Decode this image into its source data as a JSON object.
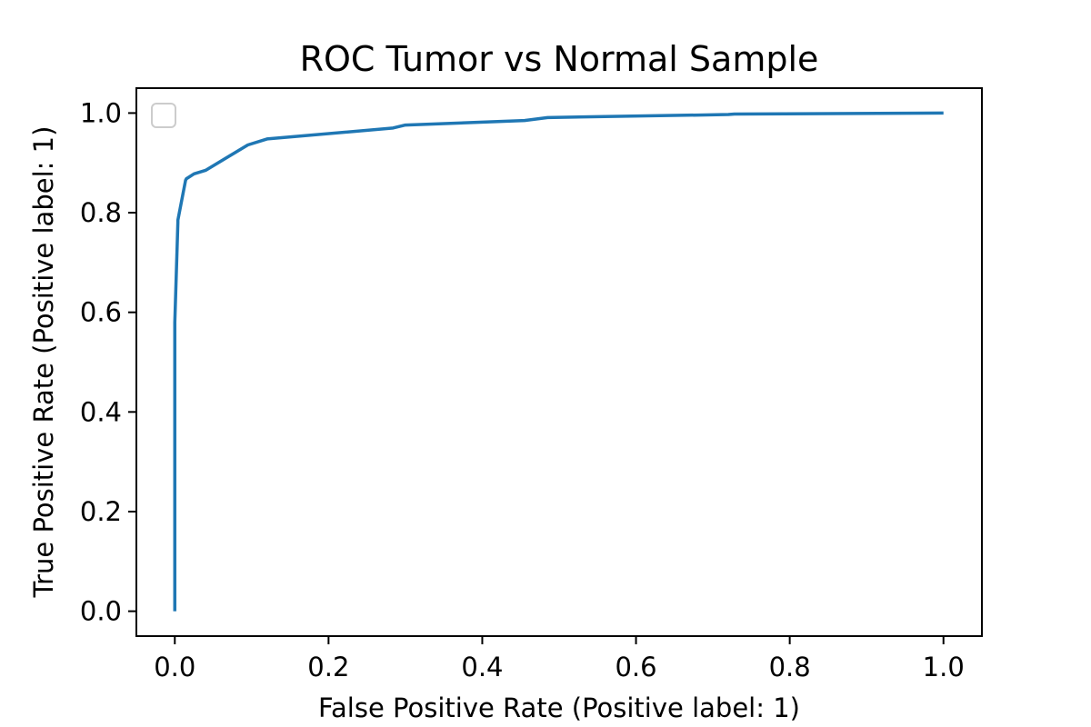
{
  "chart_data": {
    "type": "line",
    "title": "ROC Tumor vs Normal Sample",
    "xlabel": "False Positive Rate (Positive label: 1)",
    "ylabel": "True Positive Rate (Positive label: 1)",
    "xlim": [
      -0.05,
      1.05
    ],
    "ylim": [
      -0.05,
      1.05
    ],
    "x_ticks": [
      "0.0",
      "0.2",
      "0.4",
      "0.6",
      "0.8",
      "1.0"
    ],
    "y_ticks": [
      "0.0",
      "0.2",
      "0.4",
      "0.6",
      "0.8",
      "1.0"
    ],
    "grid": false,
    "legend": "upper-left",
    "series": [
      {
        "color": "#1f77b4",
        "x": [
          0.0,
          0.0,
          0.004,
          0.004,
          0.014,
          0.015,
          0.025,
          0.04,
          0.095,
          0.12,
          0.284,
          0.3,
          0.455,
          0.485,
          0.72,
          0.728,
          1.0
        ],
        "y": [
          0.0,
          0.58,
          0.78,
          0.785,
          0.865,
          0.868,
          0.878,
          0.885,
          0.936,
          0.948,
          0.97,
          0.976,
          0.985,
          0.991,
          0.997,
          0.998,
          1.0
        ]
      }
    ]
  }
}
